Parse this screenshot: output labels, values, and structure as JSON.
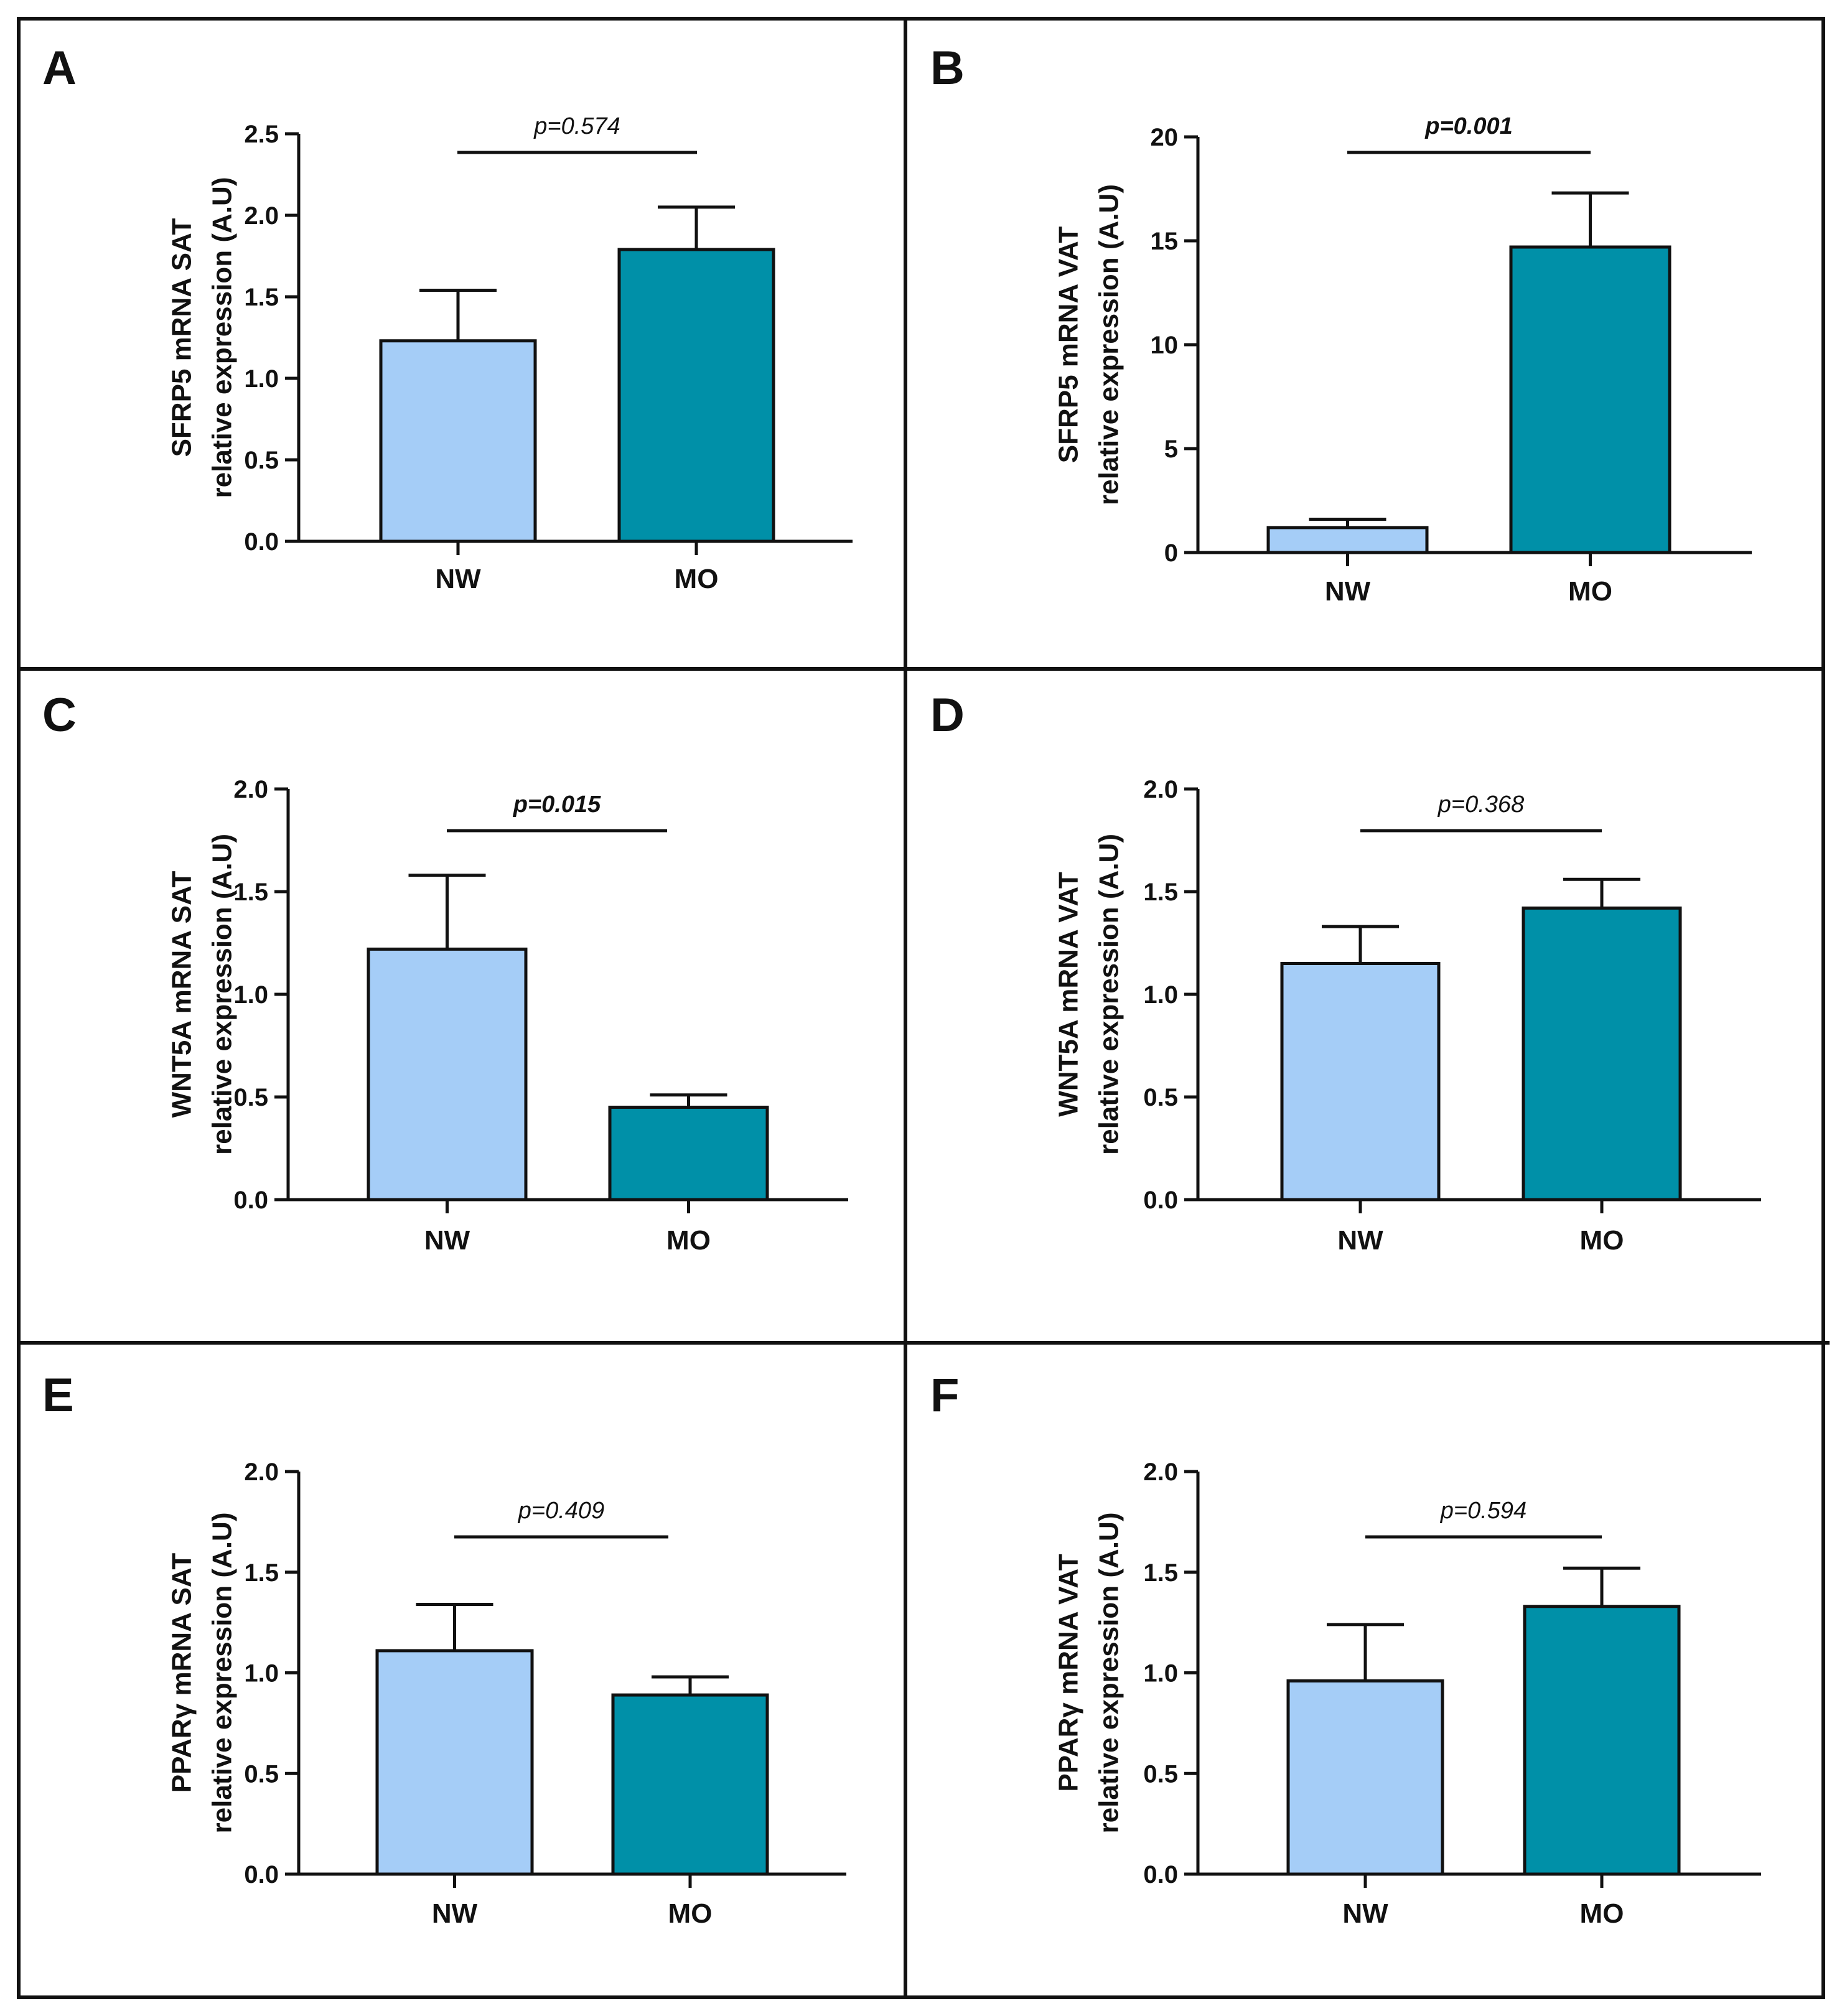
{
  "colors": {
    "NW": "#a5cdf7",
    "MO": "#0090a8",
    "ink": "#111111"
  },
  "chart_data": [
    {
      "panel": "A",
      "type": "bar",
      "categories": [
        "NW",
        "MO"
      ],
      "values": [
        1.23,
        1.79
      ],
      "errors": [
        0.31,
        0.26
      ],
      "ylabel_line1": "SFRP5 mRNA SAT",
      "ylabel_line2": "relative expression (A.U)",
      "ylim": [
        0,
        2.5
      ],
      "ticks": [
        "0.0",
        "0.5",
        "1.0",
        "1.5",
        "2.0",
        "2.5"
      ],
      "p_value": "p=0.574",
      "significant": false
    },
    {
      "panel": "B",
      "type": "bar",
      "categories": [
        "NW",
        "MO"
      ],
      "values": [
        1.2,
        14.7
      ],
      "errors": [
        0.4,
        2.6
      ],
      "ylabel_line1": "SFRP5 mRNA VAT",
      "ylabel_line2": "relative expression (A.U)",
      "ylim": [
        0,
        20
      ],
      "ticks": [
        "0",
        "5",
        "10",
        "15",
        "20"
      ],
      "p_value": "p=0.001",
      "significant": true
    },
    {
      "panel": "C",
      "type": "bar",
      "categories": [
        "NW",
        "MO"
      ],
      "values": [
        1.22,
        0.45
      ],
      "errors": [
        0.36,
        0.06
      ],
      "ylabel_line1": "WNT5A mRNA SAT",
      "ylabel_line2": "relative expression (A.U)",
      "ylim": [
        0,
        2.0
      ],
      "ticks": [
        "0.0",
        "0.5",
        "1.0",
        "1.5",
        "2.0"
      ],
      "p_value": "p=0.015",
      "significant": true
    },
    {
      "panel": "D",
      "type": "bar",
      "categories": [
        "NW",
        "MO"
      ],
      "values": [
        1.15,
        1.42
      ],
      "errors": [
        0.18,
        0.14
      ],
      "ylabel_line1": "WNT5A mRNA VAT",
      "ylabel_line2": "relative expression (A.U)",
      "ylim": [
        0,
        2.0
      ],
      "ticks": [
        "0.0",
        "0.5",
        "1.0",
        "1.5",
        "2.0"
      ],
      "p_value": "p=0.368",
      "significant": false
    },
    {
      "panel": "E",
      "type": "bar",
      "categories": [
        "NW",
        "MO"
      ],
      "values": [
        1.11,
        0.89
      ],
      "errors": [
        0.23,
        0.09
      ],
      "ylabel_line1": "PPARγ mRNA SAT",
      "ylabel_line2": "relative expression (A.U)",
      "ylim": [
        0,
        2.0
      ],
      "ticks": [
        "0.0",
        "0.5",
        "1.0",
        "1.5",
        "2.0"
      ],
      "p_value": "p=0.409",
      "significant": false
    },
    {
      "panel": "F",
      "type": "bar",
      "categories": [
        "NW",
        "MO"
      ],
      "values": [
        0.96,
        1.33
      ],
      "errors": [
        0.28,
        0.19
      ],
      "ylabel_line1": "PPARγ mRNA VAT",
      "ylabel_line2": "relative expression (A.U)",
      "ylim": [
        0,
        2.0
      ],
      "ticks": [
        "0.0",
        "0.5",
        "1.0",
        "1.5",
        "2.0"
      ],
      "p_value": "p=0.594",
      "significant": false
    }
  ]
}
